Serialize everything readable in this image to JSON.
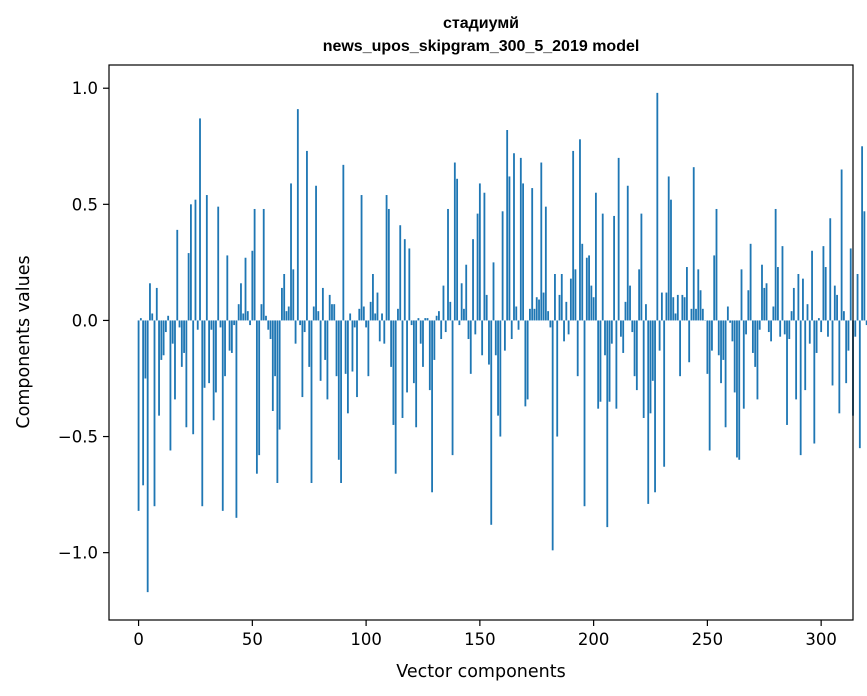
{
  "chart_data": {
    "type": "bar",
    "title": "стадиумй",
    "subtitle": "news_upos_skipgram_300_5_2019 model",
    "xlabel": "Vector components",
    "ylabel": "Components values",
    "xlim": [
      -13,
      314
    ],
    "ylim": [
      -1.29,
      1.1
    ],
    "xticks": [
      0,
      50,
      100,
      150,
      200,
      250,
      300
    ],
    "xtick_labels": [
      "0",
      "50",
      "100",
      "150",
      "200",
      "250",
      "300"
    ],
    "yticks": [
      -1.0,
      -0.5,
      0.0,
      0.5,
      1.0
    ],
    "ytick_labels": [
      "−1.0",
      "−0.5",
      "0.0",
      "0.5",
      "1.0"
    ],
    "grid": false,
    "bar_color": "#1f77b4",
    "x_start": 0,
    "values": [
      -0.82,
      0.01,
      -0.71,
      -0.25,
      -1.17,
      0.16,
      0.03,
      -0.8,
      0.14,
      -0.41,
      -0.17,
      -0.15,
      -0.05,
      0.02,
      -0.56,
      -0.1,
      -0.34,
      0.39,
      -0.03,
      -0.2,
      -0.14,
      -0.46,
      0.29,
      0.5,
      -0.49,
      0.52,
      -0.04,
      0.87,
      -0.8,
      -0.29,
      0.54,
      -0.27,
      -0.04,
      -0.43,
      -0.31,
      0.49,
      -0.03,
      -0.82,
      -0.24,
      0.28,
      -0.13,
      -0.14,
      -0.02,
      -0.85,
      0.07,
      0.16,
      0.03,
      0.27,
      0.04,
      -0.02,
      0.3,
      0.48,
      -0.66,
      -0.58,
      0.07,
      0.48,
      0.02,
      -0.04,
      -0.08,
      -0.39,
      -0.24,
      -0.7,
      -0.47,
      0.14,
      0.2,
      0.04,
      0.06,
      0.59,
      0.22,
      -0.1,
      0.91,
      -0.02,
      -0.33,
      -0.05,
      0.73,
      -0.2,
      -0.7,
      0.06,
      0.58,
      0.04,
      -0.26,
      0.14,
      -0.17,
      -0.34,
      0.11,
      0.07,
      0.07,
      -0.24,
      -0.6,
      -0.7,
      0.67,
      -0.23,
      -0.4,
      0.03,
      -0.22,
      -0.03,
      -0.33,
      0.05,
      0.54,
      0.06,
      -0.03,
      -0.24,
      0.08,
      0.2,
      0.03,
      0.12,
      -0.09,
      0.03,
      -0.1,
      0.54,
      0.48,
      -0.2,
      -0.45,
      -0.66,
      0.05,
      0.41,
      -0.42,
      0.35,
      -0.31,
      0.31,
      -0.02,
      -0.27,
      -0.46,
      0.01,
      -0.1,
      -0.2,
      0.01,
      0.01,
      -0.3,
      -0.74,
      -0.17,
      0.02,
      0.04,
      -0.08,
      0.15,
      -0.05,
      0.48,
      0.08,
      -0.58,
      0.68,
      0.61,
      -0.02,
      0.16,
      0.05,
      0.24,
      -0.08,
      -0.23,
      0.35,
      -0.06,
      0.46,
      0.59,
      -0.15,
      0.55,
      0.11,
      -0.19,
      -0.88,
      0.25,
      -0.15,
      -0.41,
      -0.5,
      0.47,
      -0.13,
      0.82,
      0.62,
      -0.08,
      0.72,
      0.06,
      -0.04,
      0.7,
      0.59,
      -0.37,
      -0.34,
      0.05,
      0.57,
      0.05,
      0.1,
      0.09,
      0.68,
      0.12,
      0.49,
      0.04,
      -0.03,
      -0.99,
      0.2,
      -0.5,
      0.11,
      0.2,
      -0.09,
      0.08,
      -0.06,
      0.18,
      0.73,
      0.22,
      -0.24,
      0.78,
      0.33,
      -0.8,
      0.27,
      0.28,
      0.15,
      0.1,
      0.55,
      -0.38,
      -0.35,
      0.46,
      -0.15,
      -0.89,
      -0.35,
      -0.1,
      0.45,
      -0.38,
      0.7,
      -0.07,
      -0.14,
      0.08,
      0.58,
      0.15,
      -0.05,
      -0.24,
      -0.3,
      0.22,
      0.46,
      -0.42,
      0.07,
      -0.79,
      -0.4,
      -0.26,
      -0.74,
      0.98,
      -0.13,
      0.12,
      -0.63,
      0.12,
      0.62,
      0.52,
      0.1,
      0.03,
      0.11,
      -0.24,
      0.11,
      0.1,
      0.23,
      -0.18,
      0.05,
      0.66,
      0.05,
      0.22,
      0.13,
      0.05,
      0.0,
      -0.23,
      -0.56,
      -0.13,
      0.28,
      0.48,
      -0.15,
      -0.27,
      -0.17,
      -0.46,
      0.06,
      -0.01,
      -0.09,
      -0.31,
      -0.59,
      -0.6,
      0.22,
      -0.38,
      -0.06,
      0.13,
      0.33,
      -0.14,
      -0.2,
      -0.34,
      -0.04,
      0.24,
      0.14,
      0.16,
      -0.05,
      -0.09,
      0.06,
      0.48,
      0.23,
      -0.07,
      0.32,
      -0.06,
      -0.45,
      -0.08,
      0.04,
      0.14,
      -0.34,
      0.2,
      -0.58,
      0.18,
      -0.3,
      0.07,
      -0.1,
      0.3,
      -0.53,
      -0.14,
      0.01,
      -0.05,
      0.32,
      0.23,
      -0.07,
      0.44,
      -0.28,
      0.15,
      0.11,
      -0.4,
      0.65,
      0.04,
      -0.27,
      -0.13,
      0.31,
      -0.41,
      -0.07,
      0.2,
      -0.55,
      0.75,
      0.47,
      -0.02
    ]
  }
}
